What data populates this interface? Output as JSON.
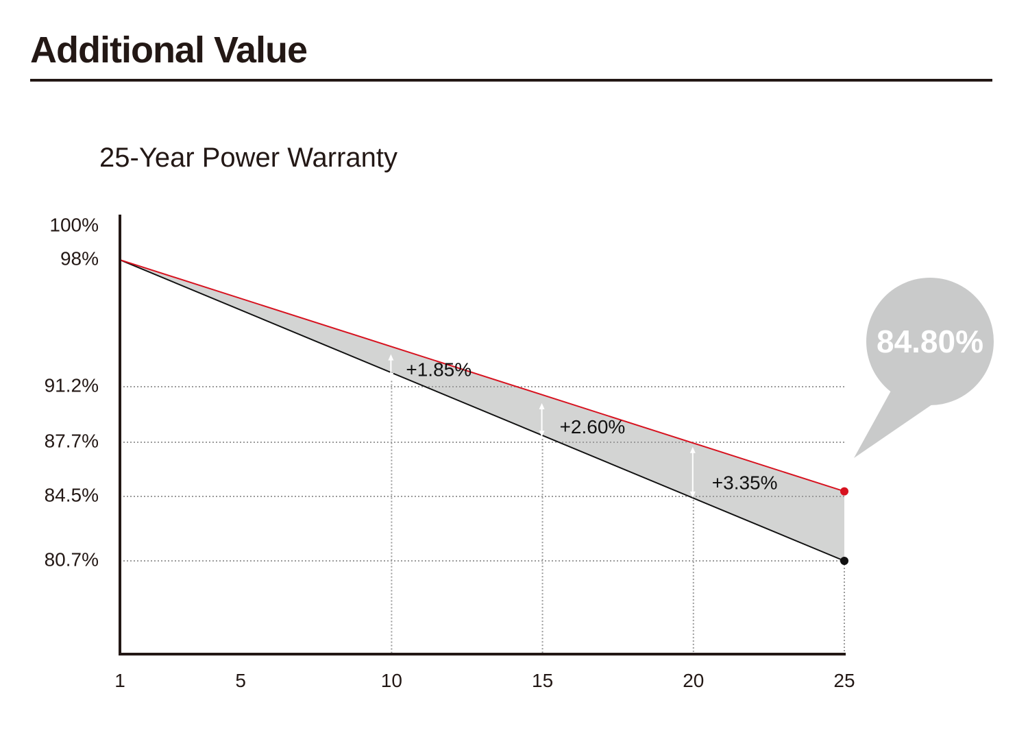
{
  "header": {
    "title": "Additional Value"
  },
  "colors": {
    "text": "#231815",
    "upper_line": "#d7121f",
    "lower_line": "#111111",
    "band_fill": "#d3d4d3",
    "bubble": "#c9caca",
    "grid": "#9a9a9a",
    "arrow": "#ffffff"
  },
  "chart_data": {
    "type": "line",
    "title": "25-Year Power Warranty",
    "xlabel": "",
    "ylabel": "",
    "x_ticks": [
      1,
      5,
      10,
      15,
      20,
      25
    ],
    "y_ticks": [
      {
        "value": 100,
        "label": "100%"
      },
      {
        "value": 98,
        "label": "98%"
      },
      {
        "value": 91.2,
        "label": "91.2%"
      },
      {
        "value": 87.7,
        "label": "87.7%"
      },
      {
        "value": 84.5,
        "label": "84.5%"
      },
      {
        "value": 80.7,
        "label": "80.7%"
      }
    ],
    "grid": "dotted guide lines at 91.2, 87.7, 84.5, 80.7 and at x = 10, 15, 20, 25",
    "series": [
      {
        "x": [
          1,
          25
        ],
        "y": [
          98,
          84.8
        ],
        "color": "#d7121f"
      },
      {
        "x": [
          1,
          25
        ],
        "y": [
          98,
          80.7
        ],
        "color": "#111111"
      }
    ],
    "annotations": [
      {
        "x": 10,
        "label": "+1.85%"
      },
      {
        "x": 15,
        "label": "+2.60%"
      },
      {
        "x": 20,
        "label": "+3.35%"
      }
    ],
    "callout": {
      "x": 25,
      "value": 84.8,
      "label": "84.80%"
    }
  }
}
